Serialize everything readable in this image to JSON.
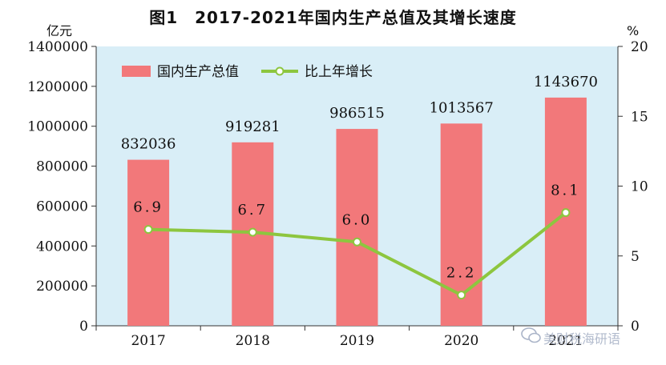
{
  "title": "图1　2017-2021年国内生产总值及其增长速度",
  "watermark": "美财税海研语",
  "chart_data": {
    "type": "bar",
    "categories": [
      "2017",
      "2018",
      "2019",
      "2020",
      "2021"
    ],
    "series": [
      {
        "name": "国内生产总值",
        "type": "bar",
        "axis": "left",
        "values": [
          832036,
          919281,
          986515,
          1013567,
          1143670
        ],
        "labels": [
          "832036",
          "919281",
          "986515",
          "1013567",
          "1143670"
        ],
        "color": "#f2787a"
      },
      {
        "name": "比上年增长",
        "type": "line",
        "axis": "right",
        "values": [
          6.9,
          6.7,
          6.0,
          2.2,
          8.1
        ],
        "labels": [
          "6.9",
          "6.7",
          "6.0",
          "2.2",
          "8.1"
        ],
        "color": "#8dc63f"
      }
    ],
    "y_left": {
      "unit": "亿元",
      "range": [
        0,
        1400000
      ],
      "ticks": [
        "0",
        "200000",
        "400000",
        "600000",
        "800000",
        "1000000",
        "1200000",
        "1400000"
      ]
    },
    "y_right": {
      "unit": "%",
      "range": [
        0,
        20
      ],
      "ticks": [
        "0",
        "5",
        "10",
        "15",
        "20"
      ]
    },
    "plot_background": "#d9eef7",
    "legend_position": "top-left",
    "grid": false
  }
}
